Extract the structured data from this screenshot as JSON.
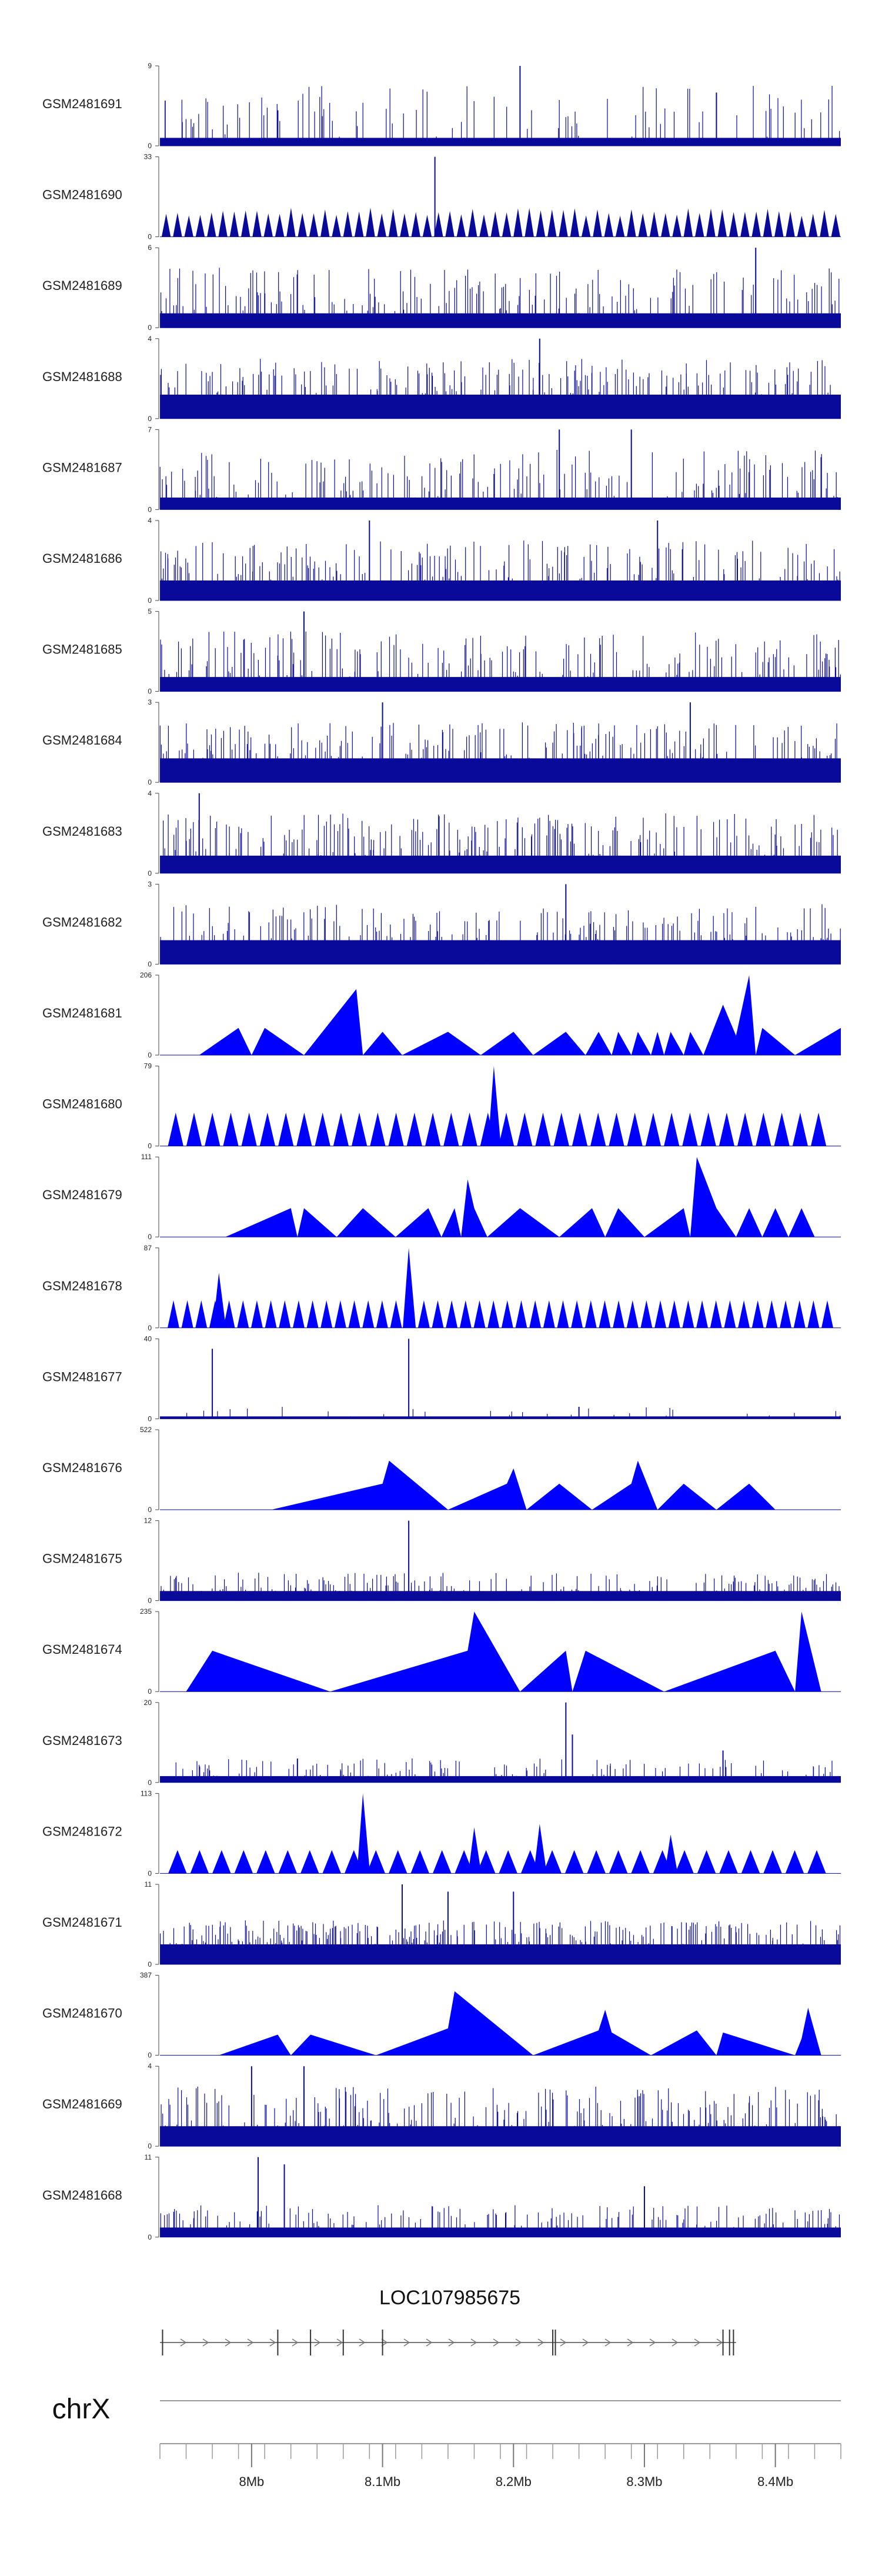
{
  "colors": {
    "signal": "#0000ff",
    "signal_dense": "#0a0a9a",
    "axis": "#444444",
    "text": "#222222"
  },
  "chart_data": {
    "type": "area",
    "title": "",
    "xlabel": "",
    "x_domain": [
      7.93,
      8.45
    ],
    "x_unit": "Mb",
    "x_ticks": [
      {
        "value": 8.0,
        "label": "8Mb"
      },
      {
        "value": 8.1,
        "label": "8.1Mb"
      },
      {
        "value": 8.2,
        "label": "8.2Mb"
      },
      {
        "value": 8.3,
        "label": "8.3Mb"
      },
      {
        "value": 8.4,
        "label": "8.4Mb"
      }
    ],
    "chromosome": "chrX",
    "gene": {
      "name": "LOC107985675",
      "start": 7.93,
      "end": 8.37
    },
    "tracks": [
      {
        "name": "GSM2481691",
        "ymax": 9,
        "style": "dense",
        "seed": 11,
        "base": 0.1,
        "spike_p": 0.2,
        "peaks": [
          [
            8.205,
            9
          ],
          [
            8.355,
            6
          ],
          [
            8.02,
            4
          ]
        ]
      },
      {
        "name": "GSM2481690",
        "ymax": 33,
        "style": "tri",
        "seed": 12,
        "n_tri": 60,
        "tri_h": 0.35,
        "peaks": [
          [
            8.14,
            33
          ]
        ]
      },
      {
        "name": "GSM2481689",
        "ymax": 6,
        "style": "dense",
        "seed": 13,
        "base": 0.18,
        "spike_p": 0.3,
        "peaks": [
          [
            8.385,
            6
          ]
        ]
      },
      {
        "name": "GSM2481688",
        "ymax": 4,
        "style": "dense",
        "seed": 14,
        "base": 0.3,
        "spike_p": 0.35,
        "peaks": [
          [
            8.22,
            4
          ]
        ]
      },
      {
        "name": "GSM2481687",
        "ymax": 7,
        "style": "dense",
        "seed": 15,
        "base": 0.15,
        "spike_p": 0.3,
        "peaks": [
          [
            8.235,
            7
          ],
          [
            8.29,
            7
          ]
        ]
      },
      {
        "name": "GSM2481686",
        "ymax": 4,
        "style": "dense",
        "seed": 16,
        "base": 0.25,
        "spike_p": 0.35,
        "peaks": [
          [
            8.09,
            4
          ],
          [
            8.31,
            4
          ]
        ]
      },
      {
        "name": "GSM2481685",
        "ymax": 5,
        "style": "dense",
        "seed": 17,
        "base": 0.18,
        "spike_p": 0.3,
        "peaks": [
          [
            8.04,
            5
          ]
        ]
      },
      {
        "name": "GSM2481684",
        "ymax": 3,
        "style": "dense",
        "seed": 18,
        "base": 0.3,
        "spike_p": 0.35,
        "peaks": [
          [
            8.1,
            3
          ],
          [
            8.335,
            3
          ]
        ]
      },
      {
        "name": "GSM2481683",
        "ymax": 4,
        "style": "dense",
        "seed": 19,
        "base": 0.22,
        "spike_p": 0.35,
        "peaks": [
          [
            7.96,
            4
          ]
        ]
      },
      {
        "name": "GSM2481682",
        "ymax": 3,
        "style": "dense",
        "seed": 20,
        "base": 0.3,
        "spike_p": 0.35,
        "peaks": [
          [
            8.24,
            3
          ]
        ]
      },
      {
        "name": "GSM2481681",
        "ymax": 206,
        "style": "poly",
        "points": [
          [
            7.96,
            0
          ],
          [
            7.99,
            70
          ],
          [
            8.0,
            0
          ],
          [
            8.01,
            70
          ],
          [
            8.04,
            0
          ],
          [
            8.08,
            170
          ],
          [
            8.085,
            0
          ],
          [
            8.1,
            60
          ],
          [
            8.115,
            0
          ],
          [
            8.15,
            60
          ],
          [
            8.175,
            0
          ],
          [
            8.2,
            60
          ],
          [
            8.215,
            0
          ],
          [
            8.24,
            60
          ],
          [
            8.255,
            0
          ],
          [
            8.265,
            60
          ],
          [
            8.275,
            0
          ],
          [
            8.28,
            60
          ],
          [
            8.29,
            0
          ],
          [
            8.295,
            60
          ],
          [
            8.305,
            0
          ],
          [
            8.31,
            60
          ],
          [
            8.315,
            0
          ],
          [
            8.32,
            60
          ],
          [
            8.33,
            0
          ],
          [
            8.335,
            60
          ],
          [
            8.345,
            0
          ],
          [
            8.36,
            130
          ],
          [
            8.37,
            50
          ],
          [
            8.38,
            206
          ],
          [
            8.385,
            0
          ],
          [
            8.39,
            70
          ],
          [
            8.415,
            0
          ],
          [
            8.45,
            70
          ]
        ]
      },
      {
        "name": "GSM2481680",
        "ymax": 79,
        "style": "triseq",
        "start": 7.935,
        "end": 8.44,
        "n_tri": 36,
        "tri_h": 33,
        "peaks": [
          [
            8.185,
            79
          ]
        ]
      },
      {
        "name": "GSM2481679",
        "ymax": 111,
        "style": "poly",
        "points": [
          [
            7.98,
            0
          ],
          [
            8.03,
            40
          ],
          [
            8.035,
            0
          ],
          [
            8.04,
            40
          ],
          [
            8.065,
            0
          ],
          [
            8.085,
            40
          ],
          [
            8.11,
            0
          ],
          [
            8.135,
            40
          ],
          [
            8.145,
            0
          ],
          [
            8.155,
            40
          ],
          [
            8.16,
            0
          ],
          [
            8.165,
            80
          ],
          [
            8.17,
            40
          ],
          [
            8.18,
            0
          ],
          [
            8.205,
            40
          ],
          [
            8.235,
            0
          ],
          [
            8.26,
            40
          ],
          [
            8.27,
            0
          ],
          [
            8.28,
            40
          ],
          [
            8.3,
            0
          ],
          [
            8.33,
            40
          ],
          [
            8.335,
            0
          ],
          [
            8.34,
            111
          ],
          [
            8.355,
            40
          ],
          [
            8.37,
            0
          ],
          [
            8.38,
            40
          ],
          [
            8.39,
            0
          ],
          [
            8.4,
            40
          ],
          [
            8.41,
            0
          ],
          [
            8.42,
            40
          ],
          [
            8.43,
            0
          ]
        ]
      },
      {
        "name": "GSM2481678",
        "ymax": 87,
        "style": "triseq",
        "start": 7.935,
        "end": 8.445,
        "n_tri": 48,
        "tri_h": 30,
        "peaks": [
          [
            7.975,
            60
          ],
          [
            8.12,
            87
          ],
          [
            8.12,
            50
          ]
        ]
      },
      {
        "name": "GSM2481677",
        "ymax": 40,
        "style": "dense",
        "seed": 21,
        "base": 0.03,
        "spike_p": 0.05,
        "spike_max": 0.15,
        "peaks": [
          [
            7.97,
            35
          ],
          [
            8.12,
            40
          ],
          [
            8.25,
            6
          ]
        ]
      },
      {
        "name": "GSM2481676",
        "ymax": 522,
        "style": "poly",
        "points": [
          [
            8.015,
            0
          ],
          [
            8.1,
            170
          ],
          [
            8.105,
            320
          ],
          [
            8.15,
            0
          ],
          [
            8.195,
            170
          ],
          [
            8.2,
            270
          ],
          [
            8.21,
            0
          ],
          [
            8.235,
            170
          ],
          [
            8.26,
            0
          ],
          [
            8.29,
            170
          ],
          [
            8.295,
            320
          ],
          [
            8.31,
            0
          ],
          [
            8.33,
            170
          ],
          [
            8.355,
            0
          ],
          [
            8.38,
            170
          ],
          [
            8.4,
            0
          ]
        ]
      },
      {
        "name": "GSM2481675",
        "ymax": 12,
        "style": "dense",
        "seed": 22,
        "base": 0.12,
        "spike_p": 0.3,
        "spike_max": 0.35,
        "peaks": [
          [
            8.12,
            12
          ]
        ]
      },
      {
        "name": "GSM2481674",
        "ymax": 235,
        "style": "poly",
        "points": [
          [
            7.95,
            0
          ],
          [
            7.97,
            120
          ],
          [
            8.06,
            0
          ],
          [
            8.165,
            120
          ],
          [
            8.17,
            235
          ],
          [
            8.205,
            0
          ],
          [
            8.24,
            120
          ],
          [
            8.245,
            0
          ],
          [
            8.255,
            120
          ],
          [
            8.315,
            0
          ],
          [
            8.4,
            120
          ],
          [
            8.415,
            0
          ],
          [
            8.42,
            235
          ],
          [
            8.435,
            0
          ]
        ]
      },
      {
        "name": "GSM2481673",
        "ymax": 20,
        "style": "dense",
        "seed": 23,
        "base": 0.08,
        "spike_p": 0.2,
        "spike_max": 0.3,
        "peaks": [
          [
            8.24,
            20
          ],
          [
            8.245,
            12
          ],
          [
            8.36,
            8
          ],
          [
            8.035,
            6
          ]
        ]
      },
      {
        "name": "GSM2481672",
        "ymax": 113,
        "style": "triseq",
        "start": 7.935,
        "end": 8.44,
        "n_tri": 30,
        "tri_h": 33,
        "peaks": [
          [
            8.085,
            113
          ],
          [
            8.17,
            65
          ],
          [
            8.22,
            70
          ],
          [
            8.32,
            55
          ]
        ]
      },
      {
        "name": "GSM2481671",
        "ymax": 11,
        "style": "dense",
        "seed": 24,
        "base": 0.25,
        "spike_p": 0.45,
        "spike_max": 0.55,
        "peaks": [
          [
            8.115,
            11
          ],
          [
            8.15,
            10
          ],
          [
            8.2,
            10
          ]
        ]
      },
      {
        "name": "GSM2481670",
        "ymax": 387,
        "style": "poly",
        "points": [
          [
            7.975,
            0
          ],
          [
            8.02,
            100
          ],
          [
            8.03,
            0
          ],
          [
            8.045,
            100
          ],
          [
            8.095,
            0
          ],
          [
            8.15,
            130
          ],
          [
            8.155,
            310
          ],
          [
            8.215,
            0
          ],
          [
            8.265,
            120
          ],
          [
            8.27,
            220
          ],
          [
            8.275,
            110
          ],
          [
            8.305,
            0
          ],
          [
            8.34,
            120
          ],
          [
            8.355,
            0
          ],
          [
            8.36,
            110
          ],
          [
            8.415,
            0
          ],
          [
            8.42,
            80
          ],
          [
            8.425,
            230
          ],
          [
            8.435,
            0
          ]
        ]
      },
      {
        "name": "GSM2481669",
        "ymax": 4,
        "style": "dense",
        "seed": 25,
        "base": 0.25,
        "spike_p": 0.4,
        "peaks": [
          [
            8.0,
            4
          ],
          [
            8.04,
            4
          ]
        ]
      },
      {
        "name": "GSM2481668",
        "ymax": 11,
        "style": "dense",
        "seed": 26,
        "base": 0.12,
        "spike_p": 0.25,
        "spike_max": 0.4,
        "peaks": [
          [
            8.005,
            11
          ],
          [
            8.025,
            10
          ],
          [
            8.3,
            7
          ]
        ]
      }
    ]
  }
}
